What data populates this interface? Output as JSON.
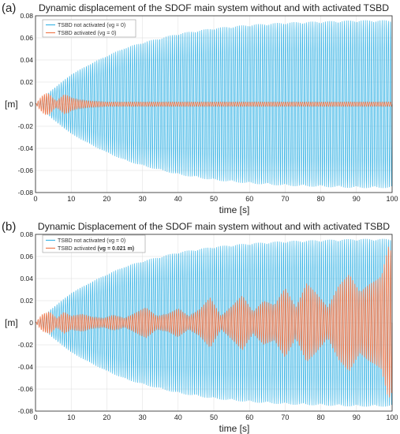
{
  "figure": {
    "panels": [
      {
        "panel_label": "(a)",
        "title": "Dynamic displacement of the SDOF main system without and with activated TSBD",
        "xlabel": "time [s]",
        "ylabel": "[m]",
        "legend": {
          "placement": "top-left",
          "items": [
            {
              "label": "TSBD not activated (vg = 0)",
              "bold_part": ""
            },
            {
              "label": "TSBD activated (vg = 0)",
              "bold_part": ""
            }
          ]
        }
      },
      {
        "panel_label": "(b)",
        "title": "Dynamic Displacement of the SDOF main system without and with activated TSBD",
        "xlabel": "time [s]",
        "ylabel": "[m]",
        "legend": {
          "placement": "top-left",
          "items": [
            {
              "label": "TSBD not activated (vg = 0)",
              "bold_part": ""
            },
            {
              "label": "TSBD activated ",
              "bold_part": "(vg = 0.021 m)"
            }
          ]
        }
      }
    ]
  },
  "colors": {
    "not_activated": "#3fb6e6",
    "activated": "#f07a4e",
    "grid": "#dcdcdc",
    "axis": "#262626"
  },
  "chart_data": [
    {
      "type": "line",
      "title": "Dynamic displacement of the SDOF main system without and with activated TSBD",
      "xlabel": "time [s]",
      "ylabel": "[m]",
      "xlim": [
        0,
        100
      ],
      "ylim": [
        -0.08,
        0.08
      ],
      "xticks": [
        0,
        10,
        20,
        30,
        40,
        50,
        60,
        70,
        80,
        90,
        100
      ],
      "yticks": [
        -0.08,
        -0.06,
        -0.04,
        -0.02,
        0,
        0.02,
        0.04,
        0.06,
        0.08
      ],
      "xtick_labels": [
        "0",
        "10",
        "20",
        "30",
        "40",
        "50",
        "60",
        "70",
        "80",
        "90",
        "100"
      ],
      "ytick_labels": [
        "-0.08",
        "-0.06",
        "-0.04",
        "-0.02",
        "0",
        "0.02",
        "0.04",
        "0.06",
        "0.08"
      ],
      "grid": true,
      "legend_placement": "top-left",
      "oscillation_cycles": 170,
      "series": [
        {
          "name": "TSBD not activated (vg = 0)",
          "color": "#3fb6e6",
          "envelope_t": [
            0,
            5,
            10,
            15,
            20,
            25,
            30,
            40,
            50,
            60,
            70,
            80,
            90,
            100
          ],
          "envelope_amp": [
            0,
            0.014,
            0.027,
            0.036,
            0.044,
            0.051,
            0.056,
            0.064,
            0.069,
            0.072,
            0.074,
            0.075,
            0.076,
            0.076
          ]
        },
        {
          "name": "TSBD activated (vg = 0)",
          "color": "#f07a4e",
          "envelope_t": [
            0,
            1,
            2,
            3,
            4,
            5,
            6,
            7,
            8,
            9,
            10,
            12,
            15,
            20,
            30,
            50,
            100
          ],
          "envelope_amp": [
            0,
            0.004,
            0.008,
            0.01,
            0.009,
            0.005,
            0.003,
            0.006,
            0.009,
            0.008,
            0.006,
            0.004,
            0.003,
            0.002,
            0.002,
            0.002,
            0.002
          ]
        }
      ]
    },
    {
      "type": "line",
      "title": "Dynamic Displacement of the SDOF main system without and with activated TSBD",
      "xlabel": "time [s]",
      "ylabel": "[m]",
      "xlim": [
        0,
        100
      ],
      "ylim": [
        -0.08,
        0.08
      ],
      "xticks": [
        0,
        10,
        20,
        30,
        40,
        50,
        60,
        70,
        80,
        90,
        100
      ],
      "yticks": [
        -0.08,
        -0.06,
        -0.04,
        -0.02,
        0,
        0.02,
        0.04,
        0.06,
        0.08
      ],
      "xtick_labels": [
        "0",
        "10",
        "20",
        "30",
        "40",
        "50",
        "60",
        "70",
        "80",
        "90",
        "100"
      ],
      "ytick_labels": [
        "-0.08",
        "-0.06",
        "-0.04",
        "-0.02",
        "0",
        "0.02",
        "0.04",
        "0.06",
        "0.08"
      ],
      "grid": true,
      "legend_placement": "top-left",
      "oscillation_cycles": 170,
      "series": [
        {
          "name": "TSBD not activated (vg = 0)",
          "color": "#3fb6e6",
          "envelope_t": [
            0,
            5,
            10,
            15,
            20,
            25,
            30,
            40,
            50,
            60,
            70,
            80,
            90,
            100
          ],
          "envelope_amp": [
            0,
            0.014,
            0.027,
            0.036,
            0.044,
            0.051,
            0.056,
            0.064,
            0.069,
            0.072,
            0.074,
            0.075,
            0.076,
            0.076
          ]
        },
        {
          "name": "TSBD activated (vg = 0.021 m)",
          "color": "#f07a4e",
          "envelope_t": [
            0,
            2,
            4,
            6,
            8,
            10,
            13,
            16,
            19,
            22,
            25,
            28,
            31,
            34,
            37,
            40,
            43,
            46,
            49,
            52,
            55,
            58,
            61,
            64,
            67,
            70,
            73,
            76,
            79,
            82,
            85,
            88,
            91,
            94,
            97,
            99,
            100
          ],
          "envelope_amp": [
            0,
            0.008,
            0.01,
            0.004,
            0.01,
            0.006,
            0.008,
            0.005,
            0.004,
            0.007,
            0.004,
            0.009,
            0.014,
            0.006,
            0.008,
            0.013,
            0.006,
            0.012,
            0.023,
            0.006,
            0.015,
            0.025,
            0.01,
            0.02,
            0.016,
            0.032,
            0.014,
            0.036,
            0.026,
            0.014,
            0.034,
            0.044,
            0.028,
            0.036,
            0.042,
            0.07,
            0.064
          ]
        }
      ]
    }
  ]
}
